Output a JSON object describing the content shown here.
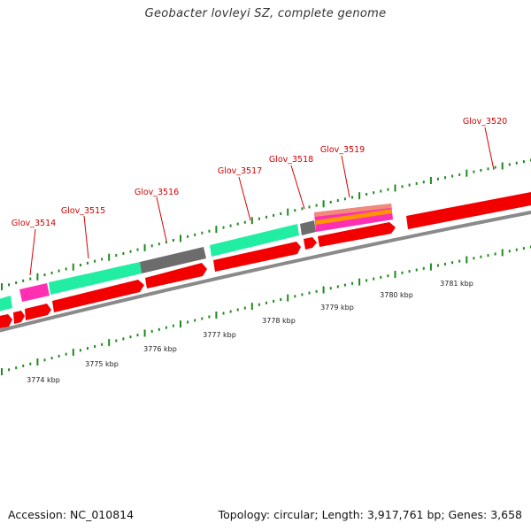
{
  "title": "Geobacter lovleyi SZ, complete genome",
  "footer": {
    "accession": "Accession: NC_010814",
    "summary": "Topology: circular; Length: 3,917,761 bp; Genes: 3,658"
  },
  "colors": {
    "cds": "#f20000",
    "teal": "#22eea3",
    "gray": "#6c6c6c",
    "magenta": "#ff2fb4",
    "backbone": "#8a8a8a",
    "tick": "#1f8a1f",
    "label": "#d40000"
  },
  "genes": [
    {
      "id": "g3514",
      "label": "Glov_3514"
    },
    {
      "id": "g3515",
      "label": "Glov_3515"
    },
    {
      "id": "g3516",
      "label": "Glov_3516"
    },
    {
      "id": "g3517",
      "label": "Glov_3517"
    },
    {
      "id": "g3518",
      "label": "Glov_3518"
    },
    {
      "id": "g3519",
      "label": "Glov_3519"
    },
    {
      "id": "g3520",
      "label": "Glov_3520"
    }
  ],
  "scale": {
    "unit": "kbp",
    "labels": [
      "3774 kbp",
      "3775 kbp",
      "3776 kbp",
      "3777 kbp",
      "3778 kbp",
      "3779 kbp",
      "3780 kbp",
      "3781 kbp"
    ]
  }
}
